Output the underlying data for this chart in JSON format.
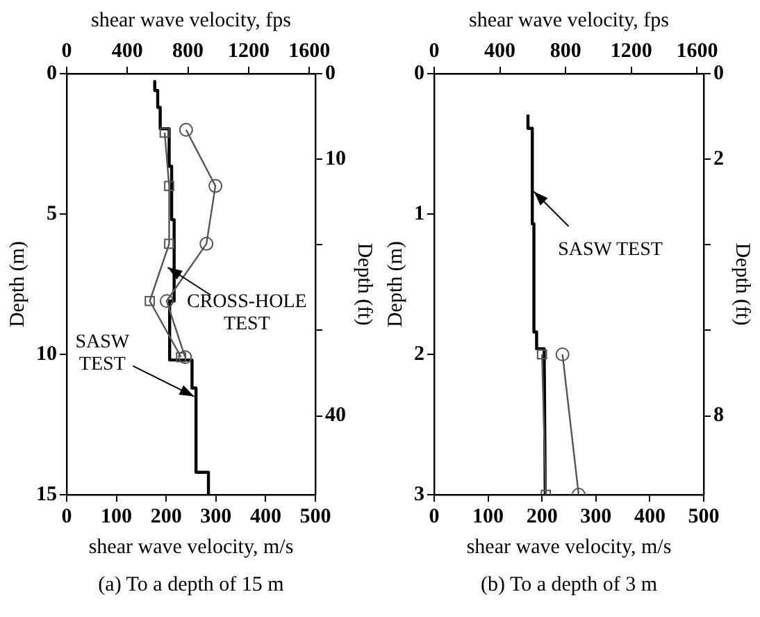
{
  "chart_data": [
    {
      "type": "line",
      "xlabel": "shear wave velocity, m/s",
      "x2label": "shear wave velocity, fps",
      "ylabel": "Depth (m)",
      "y2label": "Depth (ft)",
      "xlim": [
        0,
        500
      ],
      "xticks": [
        0,
        100,
        200,
        300,
        400,
        500
      ],
      "x2lim": [
        0,
        1640.4
      ],
      "x2ticks": [
        0,
        400,
        800,
        1200,
        1600
      ],
      "ylim": [
        15,
        0
      ],
      "yticks": [
        0,
        5,
        10,
        15
      ],
      "y2lim": [
        49.21,
        0
      ],
      "y2ticks": [
        0,
        10,
        {
          "value": 20,
          "label": null
        },
        {
          "value": 30,
          "label": null
        },
        40
      ],
      "grid": false,
      "legend": false,
      "series": [
        {
          "color": "#000000",
          "marker": "none",
          "x": [
            177,
            177,
            183,
            183,
            188,
            188,
            206,
            206,
            211,
            211,
            216,
            216,
            207,
            207,
            252,
            252,
            260,
            260,
            285,
            285
          ],
          "values": [
            0.28,
            0.6,
            0.6,
            1.2,
            1.2,
            1.96,
            1.96,
            3.3,
            3.3,
            5.2,
            5.2,
            8.1,
            8.1,
            10.2,
            10.2,
            11.2,
            11.2,
            14.2,
            14.2,
            15
          ]
        },
        {
          "color": "#555555",
          "marker": "circle",
          "x": [
            240,
            299,
            281,
            201,
            238
          ],
          "values": [
            2.0,
            4.0,
            6.06,
            8.1,
            10.1
          ]
        },
        {
          "color": "#555555",
          "marker": "square",
          "x": [
            197,
            206,
            206,
            167,
            230
          ],
          "values": [
            2.1,
            4.0,
            6.06,
            8.1,
            10.1
          ]
        }
      ],
      "annotations": [
        {
          "text": "SASW TEST",
          "x": 256,
          "y": 11.5
        },
        {
          "text": "CROSS-HOLE TEST",
          "x": 203,
          "y": 6.9
        },
        "(a) To a depth of 15 m"
      ]
    },
    {
      "type": "line",
      "xlabel": "shear wave velocity, m/s",
      "x2label": "shear wave velocity, fps",
      "ylabel": "Depth (m)",
      "y2label": "Depth (ft)",
      "xlim": [
        0,
        500
      ],
      "xticks": [
        0,
        100,
        200,
        300,
        400,
        500
      ],
      "x2lim": [
        0,
        1640.4
      ],
      "x2ticks": [
        0,
        400,
        800,
        1200,
        1600
      ],
      "ylim": [
        3,
        0
      ],
      "yticks": [
        0,
        1,
        2,
        3
      ],
      "y2lim": [
        9.843,
        0
      ],
      "y2ticks": [
        0,
        2,
        {
          "value": 4,
          "label": null
        },
        {
          "value": 6,
          "label": null
        },
        8
      ],
      "grid": false,
      "legend": false,
      "series": [
        {
          "color": "#000000",
          "marker": "none",
          "x": [
            174,
            174,
            182,
            182,
            185,
            185,
            190,
            190,
            204,
            206
          ],
          "values": [
            0.3,
            0.39,
            0.39,
            1.07,
            1.07,
            1.84,
            1.84,
            1.96,
            1.96,
            3
          ]
        },
        {
          "color": "#555555",
          "marker": "circle",
          "x": [
            238,
            268
          ],
          "values": [
            2.0,
            3
          ]
        },
        {
          "color": "#555555",
          "marker": "square",
          "x": [
            200,
            207
          ],
          "values": [
            2.0,
            3
          ]
        }
      ],
      "annotations": [
        {
          "text": "SASW TEST",
          "x": 185,
          "y": 0.84
        },
        "(b) To a depth of 3 m"
      ]
    }
  ]
}
